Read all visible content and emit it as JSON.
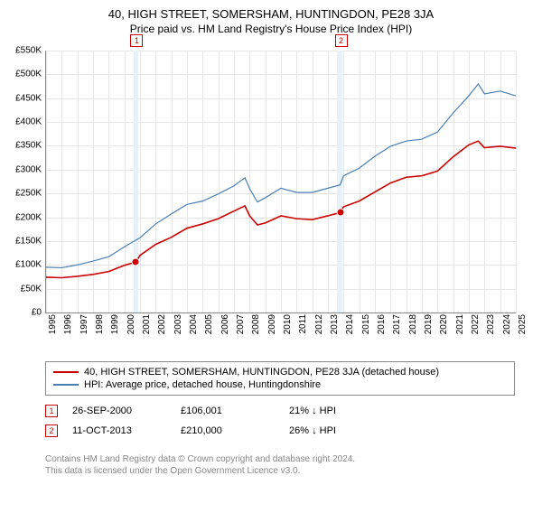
{
  "title": "40, HIGH STREET, SOMERSHAM, HUNTINGDON, PE28 3JA",
  "subtitle": "Price paid vs. HM Land Registry's House Price Index (HPI)",
  "chart": {
    "type": "line",
    "background": "#ffffff",
    "grid_color": "#e6e6e6",
    "ylim": [
      0,
      550000
    ],
    "ytick_step": 50000,
    "yticks": [
      "£0",
      "£50K",
      "£100K",
      "£150K",
      "£200K",
      "£250K",
      "£300K",
      "£350K",
      "£400K",
      "£450K",
      "£500K",
      "£550K"
    ],
    "x_years": [
      1995,
      1996,
      1997,
      1998,
      1999,
      2000,
      2001,
      2002,
      2003,
      2004,
      2005,
      2006,
      2007,
      2008,
      2009,
      2010,
      2011,
      2012,
      2013,
      2014,
      2015,
      2016,
      2017,
      2018,
      2019,
      2020,
      2021,
      2022,
      2023,
      2024,
      2025
    ],
    "shaded_bands": [
      {
        "x_start": 2000.6,
        "x_end": 2000.9,
        "color": "#e8f1f9"
      },
      {
        "x_start": 2013.6,
        "x_end": 2013.9,
        "color": "#e8f1f9"
      }
    ],
    "markers": [
      {
        "label": "1",
        "x": 2000.74,
        "y_above": true
      },
      {
        "label": "2",
        "x": 2013.78,
        "y_above": true
      }
    ],
    "series": [
      {
        "name": "price-paid",
        "label": "40, HIGH STREET, SOMERSHAM, HUNTINGDON, PE28 3JA (detached house)",
        "color": "#cc0000",
        "width": 1.6,
        "points": [
          [
            1995,
            74000
          ],
          [
            1996,
            73000
          ],
          [
            1997,
            76000
          ],
          [
            1998,
            80000
          ],
          [
            1999,
            86000
          ],
          [
            2000,
            99000
          ],
          [
            2000.74,
            106001
          ],
          [
            2001,
            120000
          ],
          [
            2002,
            143000
          ],
          [
            2003,
            158000
          ],
          [
            2004,
            177000
          ],
          [
            2005,
            186000
          ],
          [
            2006,
            197000
          ],
          [
            2007,
            213000
          ],
          [
            2007.7,
            224000
          ],
          [
            2008,
            203000
          ],
          [
            2008.5,
            184000
          ],
          [
            2009,
            188000
          ],
          [
            2010,
            203000
          ],
          [
            2011,
            197000
          ],
          [
            2012,
            195000
          ],
          [
            2013,
            203000
          ],
          [
            2013.78,
            210000
          ],
          [
            2014,
            222000
          ],
          [
            2015,
            234000
          ],
          [
            2016,
            253000
          ],
          [
            2017,
            272000
          ],
          [
            2018,
            284000
          ],
          [
            2019,
            287000
          ],
          [
            2020,
            297000
          ],
          [
            2021,
            327000
          ],
          [
            2022,
            352000
          ],
          [
            2022.6,
            360000
          ],
          [
            2023,
            346000
          ],
          [
            2024,
            349000
          ],
          [
            2025,
            345000
          ]
        ],
        "dots": [
          [
            2000.74,
            106001
          ],
          [
            2013.78,
            210000
          ]
        ]
      },
      {
        "name": "hpi",
        "label": "HPI: Average price, detached house, Huntingdonshire",
        "color": "#4a7fb5",
        "width": 1.2,
        "points": [
          [
            1995,
            95000
          ],
          [
            1996,
            94000
          ],
          [
            1997,
            100000
          ],
          [
            1998,
            108000
          ],
          [
            1999,
            117000
          ],
          [
            2000,
            138000
          ],
          [
            2001,
            157000
          ],
          [
            2002,
            186000
          ],
          [
            2003,
            207000
          ],
          [
            2004,
            227000
          ],
          [
            2005,
            234000
          ],
          [
            2006,
            249000
          ],
          [
            2007,
            266000
          ],
          [
            2007.7,
            283000
          ],
          [
            2008,
            260000
          ],
          [
            2008.5,
            232000
          ],
          [
            2009,
            241000
          ],
          [
            2010,
            261000
          ],
          [
            2011,
            252000
          ],
          [
            2012,
            252000
          ],
          [
            2013,
            261000
          ],
          [
            2013.78,
            268000
          ],
          [
            2014,
            287000
          ],
          [
            2015,
            303000
          ],
          [
            2016,
            328000
          ],
          [
            2017,
            349000
          ],
          [
            2018,
            360000
          ],
          [
            2019,
            364000
          ],
          [
            2020,
            379000
          ],
          [
            2021,
            419000
          ],
          [
            2022,
            455000
          ],
          [
            2022.6,
            480000
          ],
          [
            2023,
            459000
          ],
          [
            2024,
            465000
          ],
          [
            2025,
            455000
          ]
        ]
      }
    ]
  },
  "legend": [
    {
      "color": "#cc0000",
      "label": "40, HIGH STREET, SOMERSHAM, HUNTINGDON, PE28 3JA (detached house)"
    },
    {
      "color": "#4a7fb5",
      "label": "HPI: Average price, detached house, Huntingdonshire"
    }
  ],
  "transactions": [
    {
      "marker": "1",
      "date": "26-SEP-2000",
      "price": "£106,001",
      "delta": "21% ↓ HPI"
    },
    {
      "marker": "2",
      "date": "11-OCT-2013",
      "price": "£210,000",
      "delta": "26% ↓ HPI"
    }
  ],
  "footer_line1": "Contains HM Land Registry data © Crown copyright and database right 2024.",
  "footer_line2": "This data is licensed under the Open Government Licence v3.0."
}
